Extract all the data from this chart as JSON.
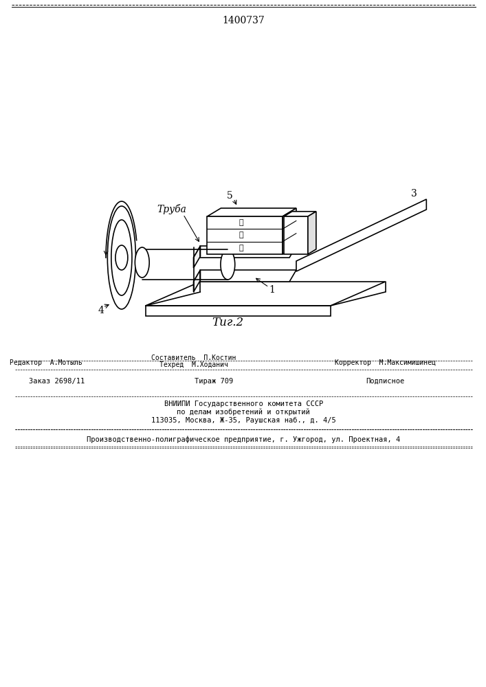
{
  "patent_number": "1400737",
  "fig_label": "Τиг.2",
  "label_truba": "Труба",
  "label_1": "1",
  "label_3": "3",
  "label_4": "4",
  "label_5": "5",
  "label_circled_1": "①",
  "label_circled_2": "②",
  "label_circled_3": "③",
  "footer_line1": "Редактор  А.Мотыль",
  "footer_line1_center": "Составитель  П.Костин",
  "footer_line1_tehred": "Техред  М.Ходанич",
  "footer_line1_right": "Корректор  М.Максимишинец",
  "footer_zakaz": "Заказ 2698/11",
  "footer_tirazh": "Тираж 709",
  "footer_podpisnoe": "Подписное",
  "footer_vnipi": "ВНИИПИ Государственного комитета СССР",
  "footer_po_delam": "по делам изобретений и открытий",
  "footer_address": "113035, Москва, Ж-35, Раушская наб., д. 4/5",
  "footer_proizv": "Производственно-полиграфическое предприятие, г. Ужгород, ул. Проектная, 4",
  "bg_color": "#ffffff",
  "line_color": "#000000"
}
